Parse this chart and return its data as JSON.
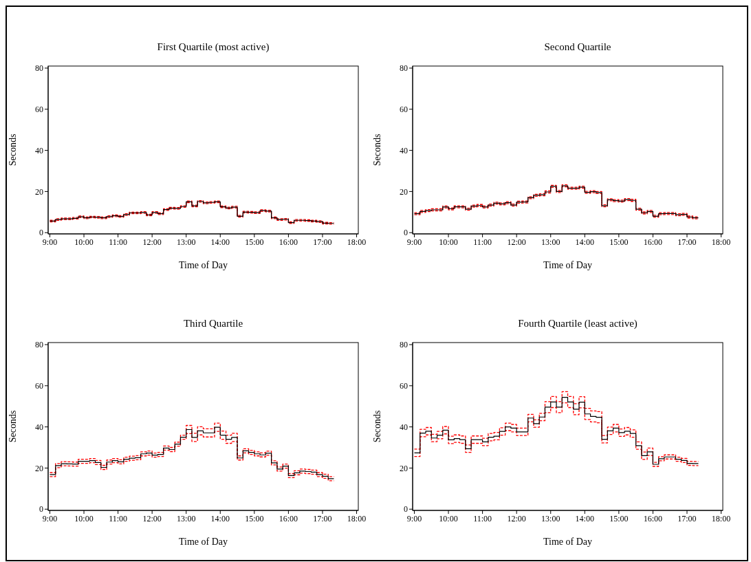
{
  "chart_data": [
    {
      "type": "step",
      "title": "First Quartile (most active)",
      "xlabel": "Time of Day",
      "ylabel": "Seconds",
      "marker": "none",
      "x": [
        9,
        9.167,
        9.333,
        9.5,
        9.667,
        9.833,
        10,
        10.167,
        10.333,
        10.5,
        10.667,
        10.833,
        11,
        11.167,
        11.333,
        11.5,
        11.667,
        11.833,
        12,
        12.167,
        12.333,
        12.5,
        12.667,
        12.833,
        13,
        13.167,
        13.333,
        13.5,
        13.667,
        13.833,
        14,
        14.167,
        14.333,
        14.5,
        14.667,
        14.833,
        15,
        15.167,
        15.333,
        15.5,
        15.667,
        15.833,
        16,
        16.167,
        16.333,
        16.5,
        16.667,
        16.833,
        17,
        17.167,
        17.333
      ],
      "xlim": [
        8.95,
        18.05
      ],
      "xticks": [
        {
          "value": 9,
          "label": "9:00"
        },
        {
          "value": 10,
          "label": "10:00"
        },
        {
          "value": 11,
          "label": "11:00"
        },
        {
          "value": 12,
          "label": "12:00"
        },
        {
          "value": 13,
          "label": "13:00"
        },
        {
          "value": 14,
          "label": "14:00"
        },
        {
          "value": 15,
          "label": "15:00"
        },
        {
          "value": 16,
          "label": "16:00"
        },
        {
          "value": 17,
          "label": "17:00"
        },
        {
          "value": 18,
          "label": "18:00"
        }
      ],
      "ylim": [
        -0.6,
        81
      ],
      "yticks": [
        0,
        20,
        40,
        60,
        80
      ],
      "series": [
        {
          "color": "#ff0000",
          "line_style": "dashed",
          "values": [
            6.0,
            6.8,
            7.1,
            7.1,
            7.4,
            8.1,
            7.6,
            8.0,
            7.9,
            7.6,
            8.2,
            8.6,
            8.3,
            9.2,
            10.0,
            10.0,
            10.2,
            9.0,
            10.2,
            9.6,
            11.6,
            12.3,
            12.2,
            13.1,
            15.4,
            13.4,
            15.6,
            14.9,
            15.1,
            15.4,
            13.0,
            12.4,
            12.8,
            8.4,
            10.4,
            10.3,
            10.1,
            11.1,
            10.9,
            7.6,
            6.8,
            6.9,
            5.3,
            6.4,
            6.4,
            6.3,
            6.0,
            5.8,
            5.0,
            4.9,
            4.9
          ]
        },
        {
          "color": "#ff0000",
          "line_style": "dashed",
          "values": [
            5.2,
            6.0,
            6.3,
            6.3,
            6.6,
            7.3,
            6.8,
            7.2,
            7.1,
            6.8,
            7.4,
            7.8,
            7.5,
            8.4,
            9.2,
            9.2,
            9.4,
            8.2,
            9.4,
            8.8,
            10.8,
            11.5,
            11.4,
            12.3,
            14.6,
            12.6,
            14.8,
            14.1,
            14.3,
            14.6,
            12.2,
            11.6,
            12.0,
            7.6,
            9.6,
            9.5,
            9.3,
            10.3,
            10.1,
            6.8,
            6.0,
            6.1,
            4.5,
            5.6,
            5.6,
            5.5,
            5.2,
            5.0,
            4.2,
            4.1,
            4.1
          ]
        },
        {
          "color": "#000000",
          "line_style": "solid",
          "values": [
            5.6,
            6.4,
            6.7,
            6.7,
            7.0,
            7.7,
            7.2,
            7.6,
            7.5,
            7.2,
            7.8,
            8.2,
            7.9,
            8.8,
            9.6,
            9.6,
            9.8,
            8.6,
            9.8,
            9.2,
            11.2,
            11.9,
            11.8,
            12.7,
            15.0,
            13.0,
            15.2,
            14.5,
            14.7,
            15.0,
            12.6,
            12.0,
            12.4,
            8.0,
            10.0,
            9.9,
            9.7,
            10.7,
            10.5,
            7.2,
            6.4,
            6.5,
            4.9,
            6.0,
            6.0,
            5.9,
            5.6,
            5.4,
            4.6,
            4.5,
            4.5
          ]
        }
      ]
    },
    {
      "type": "step",
      "title": "Second Quartile",
      "xlabel": "Time of Day",
      "ylabel": "Seconds",
      "marker": "none",
      "x": [
        9,
        9.167,
        9.333,
        9.5,
        9.667,
        9.833,
        10,
        10.167,
        10.333,
        10.5,
        10.667,
        10.833,
        11,
        11.167,
        11.333,
        11.5,
        11.667,
        11.833,
        12,
        12.167,
        12.333,
        12.5,
        12.667,
        12.833,
        13,
        13.167,
        13.333,
        13.5,
        13.667,
        13.833,
        14,
        14.167,
        14.333,
        14.5,
        14.667,
        14.833,
        15,
        15.167,
        15.333,
        15.5,
        15.667,
        15.833,
        16,
        16.167,
        16.333,
        16.5,
        16.667,
        16.833,
        17,
        17.167,
        17.333
      ],
      "xlim": [
        8.95,
        18.05
      ],
      "xticks": [
        {
          "value": 9,
          "label": "9:00"
        },
        {
          "value": 10,
          "label": "10:00"
        },
        {
          "value": 11,
          "label": "11:00"
        },
        {
          "value": 12,
          "label": "12:00"
        },
        {
          "value": 13,
          "label": "13:00"
        },
        {
          "value": 14,
          "label": "14:00"
        },
        {
          "value": 15,
          "label": "15:00"
        },
        {
          "value": 16,
          "label": "16:00"
        },
        {
          "value": 17,
          "label": "17:00"
        },
        {
          "value": 18,
          "label": "18:00"
        }
      ],
      "ylim": [
        -0.6,
        81
      ],
      "yticks": [
        0,
        20,
        40,
        60,
        80
      ],
      "series": [
        {
          "color": "#ff0000",
          "line_style": "dashed",
          "values": [
            9.7,
            10.8,
            11.2,
            11.6,
            11.6,
            13.0,
            12.1,
            13.1,
            13.1,
            11.9,
            13.4,
            13.7,
            13.0,
            13.9,
            14.8,
            14.5,
            15.1,
            13.9,
            15.3,
            15.4,
            17.5,
            18.7,
            18.9,
            20.3,
            23.0,
            20.5,
            23.3,
            22.1,
            22.1,
            22.6,
            20.1,
            20.4,
            20.0,
            13.6,
            16.5,
            16.1,
            15.8,
            16.6,
            16.2,
            11.9,
            10.1,
            10.8,
            8.5,
            9.7,
            9.8,
            9.8,
            9.2,
            9.4,
            8.1,
            7.7,
            7.7
          ]
        },
        {
          "color": "#ff0000",
          "line_style": "dashed",
          "values": [
            8.7,
            9.8,
            10.2,
            10.6,
            10.6,
            12.0,
            11.1,
            12.1,
            12.1,
            10.9,
            12.4,
            12.7,
            12.0,
            12.9,
            13.8,
            13.5,
            14.1,
            12.9,
            14.3,
            14.4,
            16.5,
            17.7,
            17.9,
            19.3,
            22.0,
            19.5,
            22.3,
            21.1,
            21.1,
            21.6,
            19.1,
            19.4,
            19.0,
            12.6,
            15.5,
            15.1,
            14.8,
            15.6,
            15.2,
            10.9,
            9.1,
            9.8,
            7.5,
            8.7,
            8.8,
            8.8,
            8.2,
            8.4,
            7.1,
            6.7,
            6.7
          ]
        },
        {
          "color": "#000000",
          "line_style": "solid",
          "values": [
            9.2,
            10.3,
            10.7,
            11.1,
            11.1,
            12.5,
            11.6,
            12.6,
            12.6,
            11.4,
            12.9,
            13.2,
            12.5,
            13.4,
            14.3,
            14.0,
            14.6,
            13.4,
            14.8,
            14.9,
            17.0,
            18.2,
            18.4,
            19.8,
            22.5,
            20.0,
            22.8,
            21.6,
            21.6,
            22.1,
            19.6,
            19.9,
            19.5,
            13.1,
            16.0,
            15.6,
            15.3,
            16.1,
            15.7,
            11.4,
            9.6,
            10.3,
            8.0,
            9.2,
            9.3,
            9.3,
            8.7,
            8.9,
            7.6,
            7.2,
            7.2
          ]
        }
      ]
    },
    {
      "type": "step",
      "title": "Third Quartile",
      "xlabel": "Time of Day",
      "ylabel": "Seconds",
      "marker": "none",
      "x": [
        9,
        9.167,
        9.333,
        9.5,
        9.667,
        9.833,
        10,
        10.167,
        10.333,
        10.5,
        10.667,
        10.833,
        11,
        11.167,
        11.333,
        11.5,
        11.667,
        11.833,
        12,
        12.167,
        12.333,
        12.5,
        12.667,
        12.833,
        13,
        13.167,
        13.333,
        13.5,
        13.667,
        13.833,
        14,
        14.167,
        14.333,
        14.5,
        14.667,
        14.833,
        15,
        15.167,
        15.333,
        15.5,
        15.667,
        15.833,
        16,
        16.167,
        16.333,
        16.5,
        16.667,
        16.833,
        17,
        17.167,
        17.333
      ],
      "xlim": [
        8.95,
        18.05
      ],
      "xticks": [
        {
          "value": 9,
          "label": "9:00"
        },
        {
          "value": 10,
          "label": "10:00"
        },
        {
          "value": 11,
          "label": "11:00"
        },
        {
          "value": 12,
          "label": "12:00"
        },
        {
          "value": 13,
          "label": "13:00"
        },
        {
          "value": 14,
          "label": "14:00"
        },
        {
          "value": 15,
          "label": "15:00"
        },
        {
          "value": 16,
          "label": "16:00"
        },
        {
          "value": 17,
          "label": "17:00"
        },
        {
          "value": 18,
          "label": "18:00"
        }
      ],
      "ylim": [
        -0.6,
        81
      ],
      "yticks": [
        0,
        20,
        40,
        60,
        80
      ],
      "series": [
        {
          "color": "#ff0000",
          "line_style": "dashed",
          "values": [
            17.8,
            22.2,
            23.1,
            23.0,
            22.9,
            24.3,
            24.3,
            24.6,
            23.7,
            21.3,
            23.9,
            24.6,
            24.0,
            25.3,
            25.8,
            26.0,
            27.9,
            28.3,
            27.3,
            27.6,
            30.7,
            30.0,
            32.6,
            36.0,
            40.7,
            36.9,
            40.1,
            39.1,
            39.1,
            41.8,
            38.0,
            36.0,
            36.9,
            25.9,
            29.4,
            28.6,
            27.9,
            27.4,
            28.2,
            23.5,
            20.5,
            21.9,
            17.3,
            18.7,
            19.5,
            19.3,
            19.0,
            17.8,
            17.0,
            15.8,
            15.8
          ]
        },
        {
          "color": "#ff0000",
          "line_style": "dashed",
          "values": [
            15.8,
            20.2,
            21.1,
            21.0,
            20.9,
            22.3,
            22.3,
            22.6,
            21.7,
            19.3,
            21.9,
            22.6,
            22.0,
            23.3,
            23.8,
            24.0,
            25.9,
            26.3,
            25.3,
            25.6,
            28.7,
            28.0,
            30.6,
            34.0,
            36.7,
            32.9,
            36.1,
            35.1,
            35.1,
            37.8,
            34.0,
            32.0,
            32.9,
            23.9,
            27.4,
            26.6,
            25.9,
            25.4,
            26.2,
            21.5,
            18.5,
            19.9,
            15.3,
            16.7,
            17.5,
            17.3,
            17.0,
            15.8,
            15.0,
            13.8,
            13.8
          ]
        },
        {
          "color": "#000000",
          "line_style": "solid",
          "values": [
            16.8,
            21.2,
            22.1,
            22.0,
            21.9,
            23.3,
            23.3,
            23.6,
            22.7,
            20.3,
            22.9,
            23.6,
            23.0,
            24.3,
            24.8,
            25.0,
            26.9,
            27.3,
            26.3,
            26.6,
            29.7,
            29.0,
            31.6,
            35.0,
            38.7,
            34.9,
            38.1,
            37.1,
            37.1,
            39.8,
            36.0,
            34.0,
            34.9,
            24.9,
            28.4,
            27.6,
            26.9,
            26.4,
            27.2,
            22.5,
            19.5,
            20.9,
            16.3,
            17.7,
            18.5,
            18.3,
            18.0,
            16.8,
            16.0,
            14.8,
            14.8
          ]
        }
      ]
    },
    {
      "type": "step",
      "title": "Fourth Quartile (least active)",
      "xlabel": "Time of Day",
      "ylabel": "Seconds",
      "marker": "none",
      "x": [
        9,
        9.167,
        9.333,
        9.5,
        9.667,
        9.833,
        10,
        10.167,
        10.333,
        10.5,
        10.667,
        10.833,
        11,
        11.167,
        11.333,
        11.5,
        11.667,
        11.833,
        12,
        12.167,
        12.333,
        12.5,
        12.667,
        12.833,
        13,
        13.167,
        13.333,
        13.5,
        13.667,
        13.833,
        14,
        14.167,
        14.333,
        14.5,
        14.667,
        14.833,
        15,
        15.167,
        15.333,
        15.5,
        15.667,
        15.833,
        16,
        16.167,
        16.333,
        16.5,
        16.667,
        16.833,
        17,
        17.167,
        17.333
      ],
      "xlim": [
        8.95,
        18.05
      ],
      "xticks": [
        {
          "value": 9,
          "label": "9:00"
        },
        {
          "value": 10,
          "label": "10:00"
        },
        {
          "value": 11,
          "label": "11:00"
        },
        {
          "value": 12,
          "label": "12:00"
        },
        {
          "value": 13,
          "label": "13:00"
        },
        {
          "value": 14,
          "label": "14:00"
        },
        {
          "value": 15,
          "label": "15:00"
        },
        {
          "value": 16,
          "label": "16:00"
        },
        {
          "value": 17,
          "label": "17:00"
        },
        {
          "value": 18,
          "label": "18:00"
        }
      ],
      "ylim": [
        -0.6,
        81
      ],
      "yticks": [
        0,
        20,
        40,
        60,
        80
      ],
      "series": [
        {
          "color": "#ff0000",
          "line_style": "dashed",
          "values": [
            29.2,
            38.8,
            39.7,
            36.4,
            37.8,
            40.2,
            35.5,
            36.1,
            35.6,
            31.2,
            35.6,
            35.6,
            34.5,
            36.8,
            37.3,
            39.6,
            41.8,
            41.2,
            39.4,
            39.4,
            46.1,
            43.4,
            46.6,
            52.3,
            54.8,
            52.3,
            57.1,
            54.8,
            51.3,
            54.7,
            49.0,
            47.8,
            47.4,
            35.8,
            39.9,
            41.2,
            39.0,
            39.7,
            38.6,
            32.7,
            27.8,
            29.7,
            22.8,
            25.5,
            26.4,
            26.4,
            25.3,
            24.7,
            23.3,
            23.2,
            23.2
          ]
        },
        {
          "color": "#ff0000",
          "line_style": "dashed",
          "values": [
            25.6,
            35.2,
            36.1,
            32.8,
            34.2,
            36.6,
            31.9,
            32.5,
            32.0,
            27.6,
            32.0,
            32.0,
            30.9,
            33.2,
            33.7,
            36.0,
            38.2,
            37.6,
            35.8,
            35.8,
            42.5,
            39.8,
            43.0,
            46.9,
            49.4,
            46.9,
            51.7,
            49.4,
            45.9,
            49.3,
            43.6,
            42.4,
            42.0,
            32.2,
            36.3,
            37.6,
            35.4,
            36.1,
            35.0,
            29.1,
            24.2,
            26.1,
            20.8,
            23.5,
            24.4,
            24.4,
            23.3,
            22.7,
            21.3,
            21.2,
            21.2
          ]
        },
        {
          "color": "#000000",
          "line_style": "solid",
          "values": [
            27.4,
            37.0,
            37.9,
            34.6,
            36.0,
            38.4,
            33.7,
            34.3,
            33.8,
            29.4,
            33.8,
            33.8,
            32.7,
            35.0,
            35.5,
            37.8,
            40.0,
            39.4,
            37.6,
            37.6,
            44.3,
            41.6,
            44.8,
            49.6,
            52.1,
            49.6,
            54.4,
            52.1,
            48.6,
            52.0,
            46.3,
            45.1,
            44.7,
            34.0,
            38.1,
            39.4,
            37.2,
            37.9,
            36.8,
            30.9,
            26.0,
            27.9,
            21.8,
            24.5,
            25.4,
            25.4,
            24.3,
            23.7,
            22.3,
            22.2,
            22.2
          ]
        }
      ]
    }
  ]
}
